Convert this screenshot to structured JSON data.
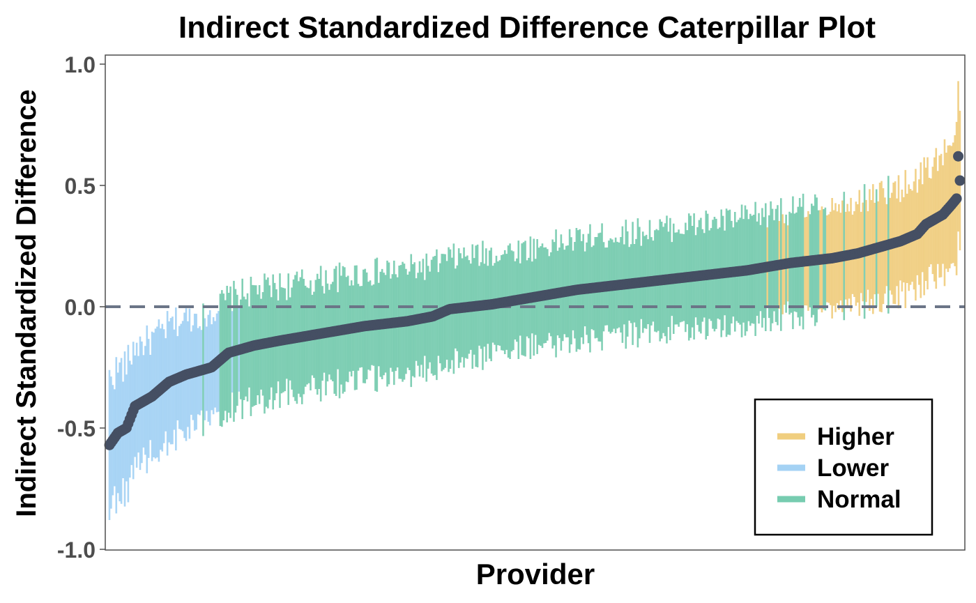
{
  "chart_data": {
    "type": "scatter",
    "subtype": "caterpillar",
    "title": "Indirect Standardized Difference Caterpillar Plot",
    "xlabel": "Provider",
    "ylabel": "Indirect Standardized Difference",
    "ylim": [
      -1.0,
      1.0
    ],
    "yticks": [
      {
        "value": 1.0,
        "label": "1.0"
      },
      {
        "value": 0.5,
        "label": "0.5"
      },
      {
        "value": 0.0,
        "label": "0.0"
      },
      {
        "value": -0.5,
        "label": "-0.5"
      },
      {
        "value": -1.0,
        "label": "-1.0"
      }
    ],
    "reference_line": 0.0,
    "grid": false,
    "n_providers": 500,
    "legend": {
      "placement": "bottom-right",
      "entries": [
        {
          "name": "Higher",
          "color": "#E9B949"
        },
        {
          "name": "Lower",
          "color": "#7DBFEF"
        },
        {
          "name": "Normal",
          "color": "#3DB68E"
        }
      ]
    },
    "colors": {
      "point": "#454F63",
      "reference": "#6B7587",
      "frame": "#4d4d4d"
    },
    "estimate_curve": {
      "rank_fraction": [
        0.0,
        0.004,
        0.01,
        0.02,
        0.03,
        0.05,
        0.07,
        0.09,
        0.12,
        0.13,
        0.14,
        0.17,
        0.2,
        0.25,
        0.3,
        0.35,
        0.38,
        0.4,
        0.45,
        0.5,
        0.55,
        0.6,
        0.65,
        0.7,
        0.75,
        0.8,
        0.85,
        0.88,
        0.9,
        0.93,
        0.95,
        0.96,
        0.98,
        0.99,
        0.997,
        1.0
      ],
      "estimate": [
        -0.57,
        -0.55,
        -0.52,
        -0.5,
        -0.41,
        -0.37,
        -0.31,
        -0.28,
        -0.25,
        -0.22,
        -0.19,
        -0.16,
        -0.14,
        -0.11,
        -0.08,
        -0.06,
        -0.04,
        -0.01,
        0.01,
        0.04,
        0.07,
        0.09,
        0.11,
        0.13,
        0.15,
        0.18,
        0.2,
        0.22,
        0.24,
        0.27,
        0.3,
        0.34,
        0.38,
        0.42,
        0.45,
        0.52
      ]
    },
    "interval_half_width": {
      "rank_fraction": [
        0.0,
        0.05,
        0.5,
        0.95,
        1.0
      ],
      "value": [
        0.28,
        0.24,
        0.21,
        0.23,
        0.27
      ]
    },
    "series": [
      {
        "name": "Lower",
        "rank_range": [
          0,
          0.13
        ],
        "note_rank_fraction_of_normal_interleaving": 0.07
      },
      {
        "name": "Normal",
        "rank_range": [
          0.05,
          0.9
        ]
      },
      {
        "name": "Higher",
        "rank_range": [
          0.78,
          1.0
        ]
      }
    ],
    "outliers": [
      {
        "rank_fraction": 0.998,
        "estimate": 0.62
      },
      {
        "rank_fraction": 0.999,
        "estimate": 0.52
      }
    ]
  }
}
